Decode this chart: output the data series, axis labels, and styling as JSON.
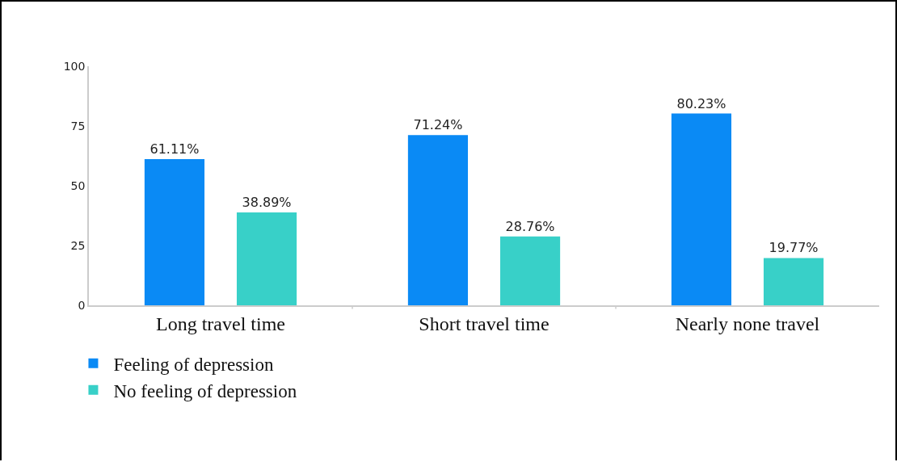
{
  "chart_data": {
    "type": "bar",
    "categories": [
      "Long travel time",
      "Short travel time",
      "Nearly none travel"
    ],
    "series": [
      {
        "name": "Feeling of depression",
        "color": "#0a8af5",
        "values": [
          61.11,
          71.24,
          80.23
        ],
        "value_labels": [
          "61.11%",
          "71.24%",
          "80.23%"
        ]
      },
      {
        "name": "No feeling of depression",
        "color": "#38d0c8",
        "values": [
          38.89,
          28.76,
          19.77
        ],
        "value_labels": [
          "38.89%",
          "28.76%",
          "19.77%"
        ]
      }
    ],
    "ylim": [
      0,
      100
    ],
    "yticks": [
      0,
      25,
      50,
      75,
      100
    ],
    "grid": false,
    "legend": "bottom left"
  }
}
